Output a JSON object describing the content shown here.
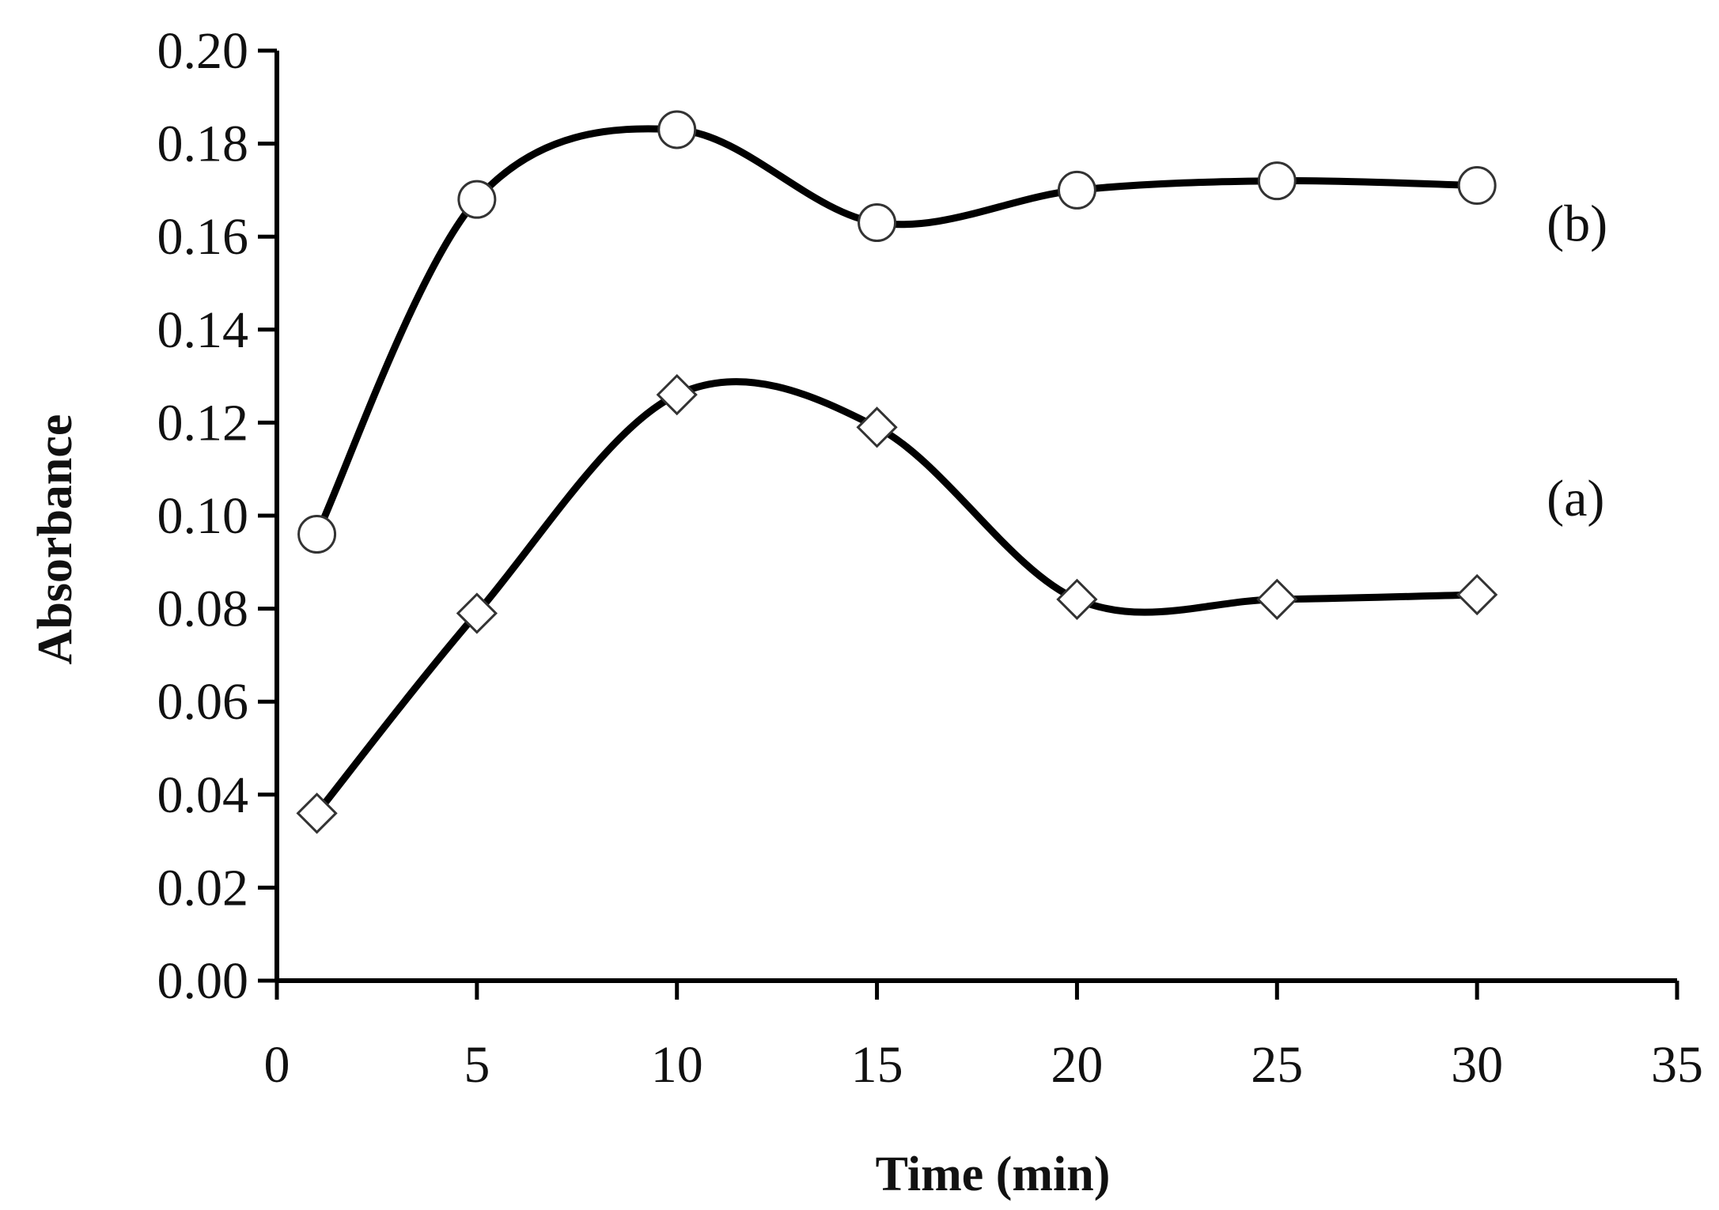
{
  "chart_data": {
    "type": "line",
    "xlabel": "Time (min)",
    "ylabel": "Absorbance",
    "xlim": [
      0,
      35
    ],
    "ylim": [
      0.0,
      0.2
    ],
    "xticks": [
      "0",
      "5",
      "10",
      "15",
      "20",
      "25",
      "30",
      "35"
    ],
    "yticks": [
      "0.00",
      "0.02",
      "0.04",
      "0.06",
      "0.08",
      "0.10",
      "0.12",
      "0.14",
      "0.16",
      "0.18",
      "0.20"
    ],
    "grid": false,
    "smooth": true,
    "series": [
      {
        "name": "(a)",
        "marker": "diamond",
        "x": [
          1,
          5,
          10,
          15,
          20,
          25,
          30
        ],
        "y": [
          0.036,
          0.079,
          0.126,
          0.119,
          0.082,
          0.082,
          0.083
        ]
      },
      {
        "name": "(b)",
        "marker": "circle",
        "x": [
          1,
          5,
          10,
          15,
          20,
          25,
          30
        ],
        "y": [
          0.096,
          0.168,
          0.183,
          0.163,
          0.17,
          0.172,
          0.171
        ]
      }
    ],
    "colors": {
      "line": "#000000",
      "marker_fill": "#ffffff",
      "marker_stroke": "#333333"
    }
  }
}
